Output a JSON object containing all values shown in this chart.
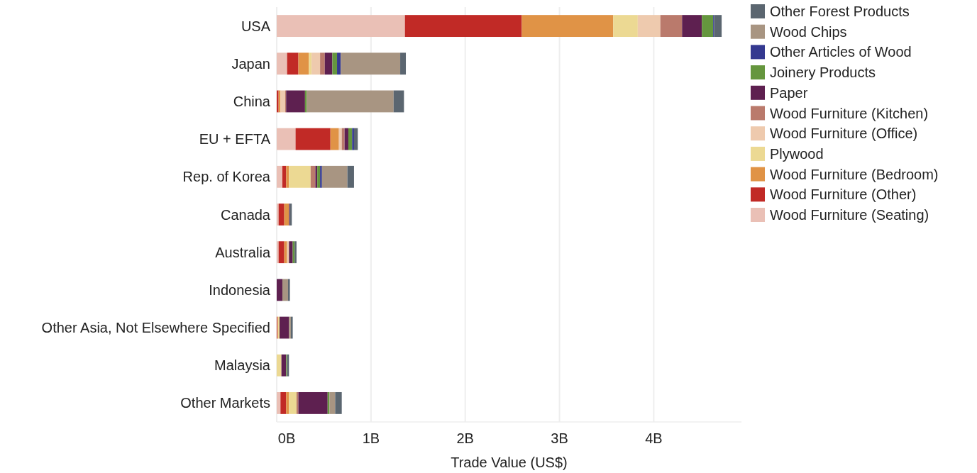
{
  "chart_data": {
    "type": "bar",
    "orientation": "horizontal",
    "stacked": true,
    "xlabel": "Trade Value (US$)",
    "categories": [
      "USA",
      "Japan",
      "China",
      "EU + EFTA",
      "Rep. of Korea",
      "Canada",
      "Australia",
      "Indonesia",
      "Other Asia, Not Elsewhere Specified",
      "Malaysia",
      "Other Markets"
    ],
    "xlim": [
      0,
      4.93
    ],
    "xticks": [
      {
        "value": 0,
        "label": "0B"
      },
      {
        "value": 1,
        "label": "1B"
      },
      {
        "value": 2,
        "label": "2B"
      },
      {
        "value": 3,
        "label": "3B"
      },
      {
        "value": 4,
        "label": "4B"
      }
    ],
    "grid": "x",
    "legend": "top right",
    "series": [
      {
        "name": "Wood Furniture (Seating)",
        "color": "#eac0b6",
        "values": [
          1.36,
          0.11,
          null,
          0.2,
          0.06,
          0.02,
          0.02,
          0,
          0,
          0,
          0.04
        ]
      },
      {
        "name": "Wood Furniture (Other)",
        "color": "#c12a26",
        "values": [
          1.24,
          0.12,
          0.02,
          0.37,
          0.04,
          0.06,
          0.06,
          0,
          0.01,
          0,
          0.06
        ]
      },
      {
        "name": "Wood Furniture (Bedroom)",
        "color": "#e09346",
        "values": [
          0.97,
          0.11,
          0.02,
          0.09,
          0.03,
          0.05,
          0.03,
          0,
          0,
          0,
          0.03
        ]
      },
      {
        "name": "Plywood",
        "color": "#ecd993",
        "values": [
          0.26,
          0.03,
          0,
          0,
          0.23,
          0,
          0,
          0,
          0.02,
          0.05,
          0.08
        ]
      },
      {
        "name": "Wood Furniture (Office)",
        "color": "#eecaae",
        "values": [
          0.24,
          0.09,
          0.05,
          0.03,
          0,
          0,
          0.02,
          0,
          0,
          0,
          0
        ]
      },
      {
        "name": "Wood Furniture (Kitchen)",
        "color": "#ba7a6c",
        "values": [
          0.23,
          0.05,
          0.01,
          0.03,
          0.05,
          0,
          0,
          0,
          0,
          0,
          0.02
        ]
      },
      {
        "name": "Paper",
        "color": "#5e2050",
        "values": [
          0.21,
          0.08,
          0.2,
          0.04,
          0.02,
          0.01,
          0.04,
          0.06,
          0.1,
          0.05,
          0.31
        ]
      },
      {
        "name": "Joinery Products",
        "color": "#65963e",
        "values": [
          0.12,
          0.05,
          0.02,
          0.04,
          0.03,
          0,
          0.02,
          0,
          0,
          0.01,
          0.02
        ]
      },
      {
        "name": "Other Articles of Wood",
        "color": "#343990",
        "values": [
          0.01,
          0.04,
          0,
          0.02,
          0.02,
          0,
          0,
          0,
          0,
          0,
          0
        ]
      },
      {
        "name": "Wood Chips",
        "color": "#a89582",
        "values": [
          0,
          0.63,
          0.92,
          0,
          0.27,
          0,
          0,
          0.06,
          0.02,
          0,
          0.06
        ]
      },
      {
        "name": "Other Forest Products",
        "color": "#5b6670",
        "values": [
          0.08,
          0.06,
          0.11,
          0.04,
          0.07,
          0.02,
          0.02,
          0.02,
          0.02,
          0.02,
          0.07
        ]
      }
    ]
  }
}
